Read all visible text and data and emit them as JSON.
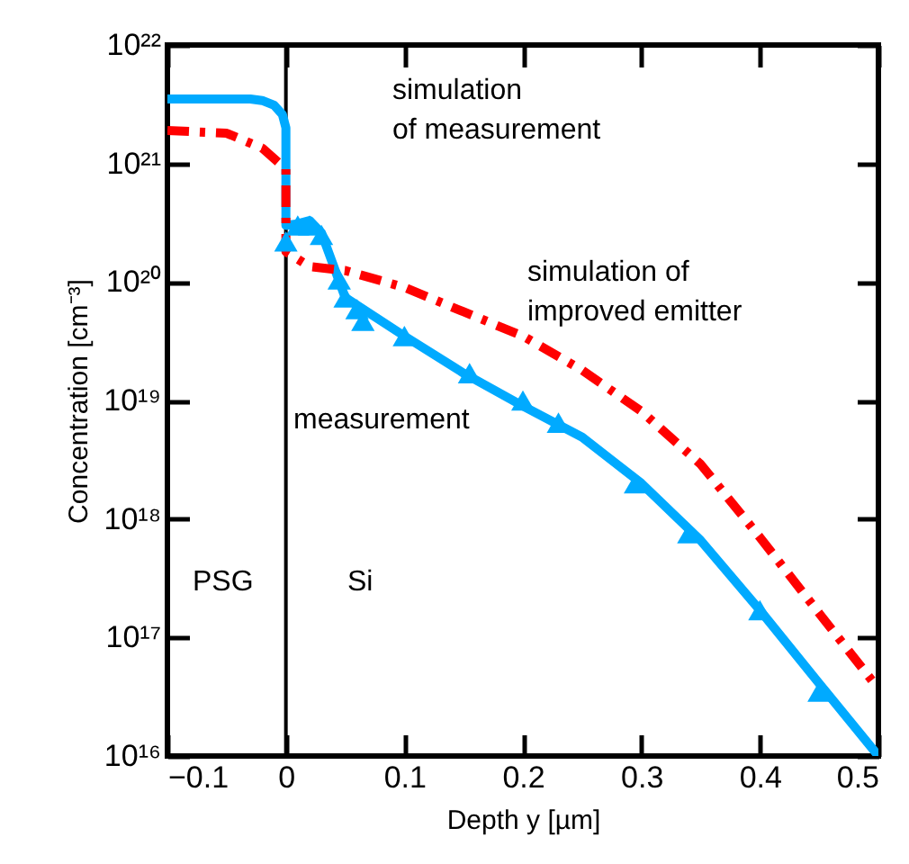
{
  "chart_data": {
    "type": "line",
    "xlabel": "Depth y [µm]",
    "ylabel": "Concentration [cm⁻³]",
    "log": "y",
    "grid": false,
    "xlim": [
      -0.1,
      0.5
    ],
    "xticks": [
      -0.1,
      0,
      0.1,
      0.2,
      0.3,
      0.4,
      0.5
    ],
    "ylim": [
      1e+16,
      1e+22
    ],
    "yticks": [
      {
        "value": 1e+16,
        "label": "10¹⁶"
      },
      {
        "value": 1e+17,
        "label": "10¹⁷"
      },
      {
        "value": 1e+18,
        "label": "10¹⁸"
      },
      {
        "value": 1e+19,
        "label": "10¹⁹"
      },
      {
        "value": 1e+20,
        "label": "10²⁰"
      },
      {
        "value": 1e+21,
        "label": "10²¹"
      },
      {
        "value": 1e+22,
        "label": "10²²"
      }
    ],
    "ref_lines": [
      {
        "axis": "x",
        "value": 0,
        "color": "#000000"
      }
    ],
    "series": [
      {
        "type": "line",
        "color": "#00aaff",
        "line_style": "solid",
        "marker": "none",
        "x": [
          -0.1,
          -0.05,
          -0.03,
          -0.02,
          -0.01,
          -0.003,
          0,
          0,
          0.01,
          0.02,
          0.03,
          0.05,
          0.1,
          0.15,
          0.2,
          0.25,
          0.3,
          0.35,
          0.4,
          0.45,
          0.5
        ],
        "values": [
          3.5e+21,
          3.5e+21,
          3.5e+21,
          3.4e+21,
          3.1e+21,
          2.6e+21,
          2e+21,
          3e+20,
          3.1e+20,
          3.3e+20,
          2.6e+20,
          7.4e+19,
          3.5e+19,
          1.7e+19,
          9e+18,
          4.9e+18,
          2e+18,
          6.6e+17,
          1.7e+17,
          4.1e+16,
          1e+16
        ]
      },
      {
        "type": "line",
        "color": "#ff0000",
        "line_style": "dashdot",
        "marker": "none",
        "x": [
          -0.1,
          -0.05,
          -0.02,
          0,
          0,
          0.02,
          0.05,
          0.1,
          0.15,
          0.2,
          0.25,
          0.3,
          0.35,
          0.4,
          0.45,
          0.5
        ],
        "values": [
          1.9e+21,
          1.8e+21,
          1.35e+21,
          9e+20,
          1.8e+20,
          1.35e+20,
          1.25e+20,
          9e+19,
          5.6e+19,
          3.5e+19,
          1.8e+19,
          8.1e+18,
          2.9e+18,
          7e+17,
          1.6e+17,
          3.7e+16
        ]
      },
      {
        "type": "scatter",
        "color": "#00aaff",
        "marker": "triangle",
        "x": [
          0,
          0.01,
          0.02,
          0.03,
          0.045,
          0.05,
          0.06,
          0.065,
          0.1,
          0.155,
          0.2,
          0.23,
          0.295,
          0.34,
          0.4,
          0.45
        ],
        "values": [
          2.2e+20,
          3e+20,
          3e+20,
          2.5e+20,
          1.05e+20,
          7.4e+19,
          5.9e+19,
          4.7e+19,
          3.5e+19,
          1.7e+19,
          1e+19,
          6.5e+18,
          2e+18,
          7.6e+17,
          1.7e+17,
          3.5e+16
        ]
      }
    ],
    "annotations": [
      "simulation\nof measurement",
      "simulation of\nimproved emitter",
      "measurement",
      "PSG",
      "Si"
    ]
  }
}
